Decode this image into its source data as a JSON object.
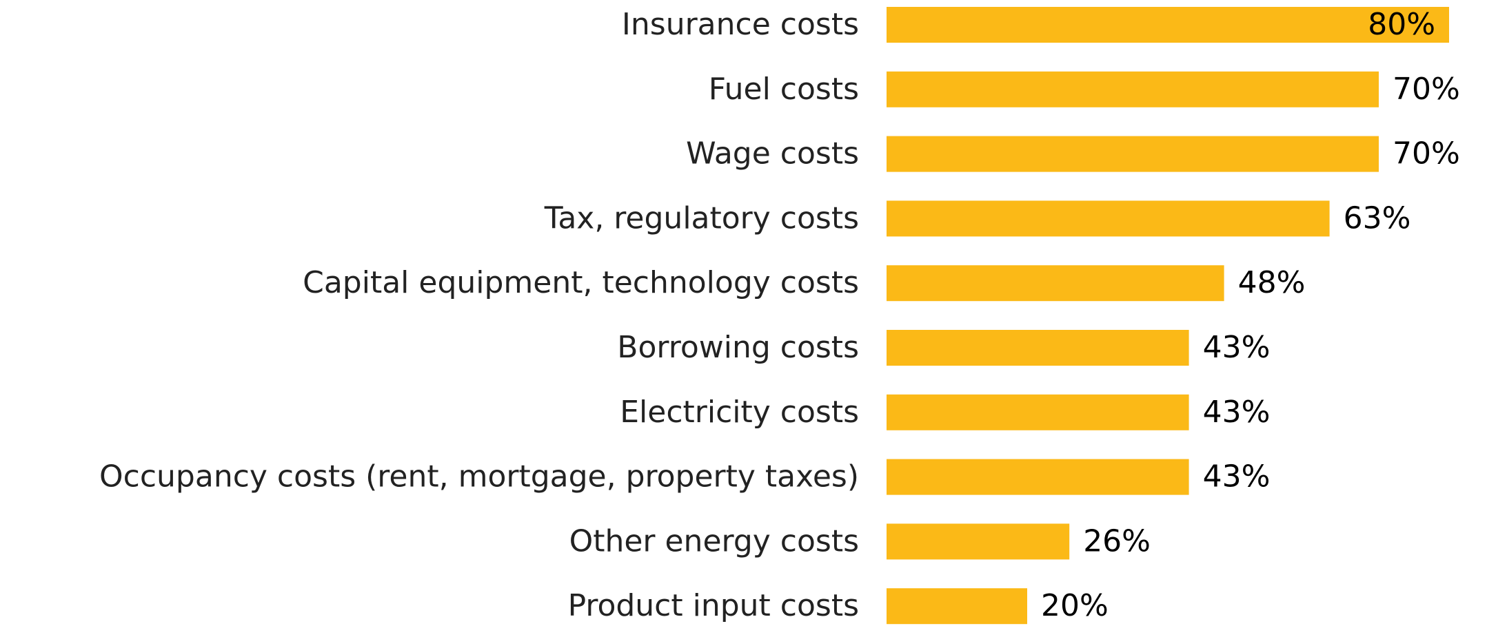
{
  "chart_data": {
    "type": "bar",
    "orientation": "horizontal",
    "categories": [
      "Insurance costs",
      "Fuel costs",
      "Wage costs",
      "Tax, regulatory costs",
      "Capital equipment, technology costs",
      "Borrowing costs",
      "Electricity costs",
      "Occupancy costs (rent, mortgage, property taxes)",
      "Other energy costs",
      "Product input costs"
    ],
    "values": [
      80,
      70,
      70,
      63,
      48,
      43,
      43,
      43,
      26,
      20
    ],
    "value_labels": [
      "80%",
      "70%",
      "70%",
      "63%",
      "48%",
      "43%",
      "43%",
      "43%",
      "26%",
      "20%"
    ],
    "color": "#fbb917",
    "xlim": [
      0,
      80
    ]
  }
}
